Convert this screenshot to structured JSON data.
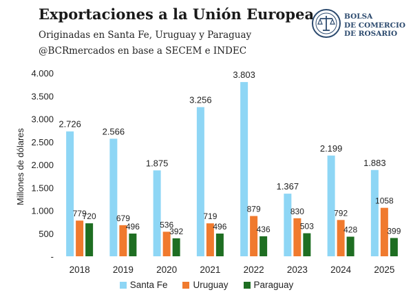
{
  "header": {
    "title": "Exportaciones a la Unión Europea",
    "subtitle": "Originadas en Santa Fe, Uruguay y Paraguay",
    "source": "@BCRmercados en base a SECEM e INDEC"
  },
  "logo": {
    "line1": "BOLSA",
    "line2": "DE COMERCIO",
    "line3": "DE ROSARIO",
    "icon": "scales-of-justice-seal-icon",
    "color": "#2c4a6e"
  },
  "chart_data": {
    "type": "bar",
    "categories": [
      "2018",
      "2019",
      "2020",
      "2021",
      "2022",
      "2023",
      "2024",
      "2025"
    ],
    "series": [
      {
        "name": "Santa Fe",
        "color": "#8ed6f5",
        "values": [
          2726,
          2566,
          1875,
          3256,
          3803,
          1367,
          2199,
          1883
        ],
        "labels": [
          "2.726",
          "2.566",
          "1.875",
          "3.256",
          "3.803",
          "1.367",
          "2.199",
          "1.883"
        ]
      },
      {
        "name": "Uruguay",
        "color": "#f07a2e",
        "values": [
          779,
          679,
          536,
          719,
          879,
          830,
          792,
          1058
        ],
        "labels": [
          "779",
          "679",
          "536",
          "719",
          "879",
          "830",
          "792",
          "1058"
        ]
      },
      {
        "name": "Paraguay",
        "color": "#1e6e22",
        "values": [
          720,
          496,
          392,
          496,
          436,
          503,
          428,
          399
        ],
        "labels": [
          "720",
          "496",
          "392",
          "496",
          "436",
          "503",
          "428",
          "399"
        ]
      }
    ],
    "ylabel": "Millones de dólares",
    "ylim": [
      0,
      4000
    ],
    "yticks": [
      0,
      500,
      1000,
      1500,
      2000,
      2500,
      3000,
      3500,
      4000
    ],
    "ytick_labels": [
      "-",
      "500",
      "1.000",
      "1.500",
      "2.000",
      "2.500",
      "3.000",
      "3.500",
      "4.000"
    ],
    "grid": false,
    "legend_position": "bottom"
  }
}
